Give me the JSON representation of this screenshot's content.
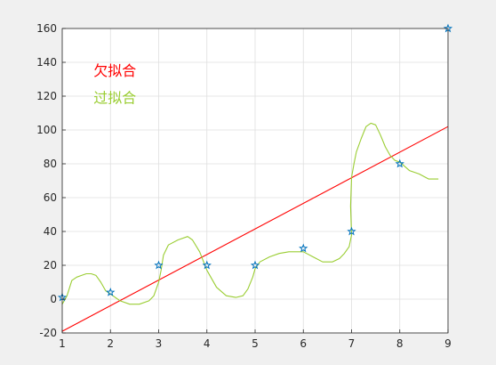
{
  "chart_data": {
    "type": "line",
    "title": "",
    "xlabel": "",
    "ylabel": "",
    "xlim": [
      1,
      9
    ],
    "ylim": [
      -20,
      160
    ],
    "xticks": [
      "1",
      "2",
      "3",
      "4",
      "5",
      "6",
      "7",
      "8",
      "9"
    ],
    "yticks": [
      "-20",
      "0",
      "20",
      "40",
      "60",
      "80",
      "100",
      "120",
      "140",
      "160"
    ],
    "grid": true,
    "points": {
      "marker": "star",
      "color": "#0072BD",
      "x": [
        1,
        2,
        3,
        4,
        5,
        6,
        7,
        8,
        9
      ],
      "y": [
        1,
        4,
        20,
        20,
        20,
        30,
        40,
        80,
        160
      ]
    },
    "series": [
      {
        "color": "#ff0000",
        "x": [
          1,
          9
        ],
        "y": [
          -19,
          102
        ]
      },
      {
        "color": "#9acd32",
        "x": [
          1,
          1.1,
          1.2,
          1.3,
          1.4,
          1.5,
          1.6,
          1.7,
          1.75,
          1.8,
          1.9,
          2,
          2.2,
          2.4,
          2.6,
          2.8,
          2.9,
          3,
          3.05,
          3.1,
          3.2,
          3.4,
          3.6,
          3.7,
          3.85,
          4,
          4.2,
          4.4,
          4.6,
          4.75,
          4.85,
          4.95,
          5,
          5.1,
          5.3,
          5.5,
          5.7,
          5.9,
          6,
          6.2,
          6.4,
          6.6,
          6.75,
          6.85,
          6.95,
          7,
          6.98,
          7,
          7.05,
          7.1,
          7.2,
          7.3,
          7.4,
          7.5,
          7.6,
          7.7,
          7.8,
          7.9,
          8,
          8.2,
          8.4,
          8.6,
          8.8
        ],
        "y": [
          -3,
          2,
          11,
          13,
          14,
          15,
          15,
          14,
          12,
          10,
          5,
          3,
          -1,
          -3,
          -3,
          -1,
          2,
          10,
          17,
          26,
          32,
          35,
          37,
          35,
          28,
          17,
          7,
          2,
          1,
          2,
          6,
          13,
          18,
          22,
          25,
          27,
          28,
          28,
          28,
          25,
          22,
          22,
          24,
          27,
          31,
          38,
          55,
          72,
          80,
          87,
          95,
          102,
          104,
          103,
          97,
          90,
          85,
          82,
          81,
          76,
          74,
          71,
          71
        ]
      }
    ],
    "annotations": [
      {
        "text": "欠拟合",
        "color": "#ff0000",
        "x": 1.65,
        "y": 132
      },
      {
        "text": "过拟合",
        "color": "#9acd32",
        "x": 1.65,
        "y": 116
      }
    ]
  }
}
